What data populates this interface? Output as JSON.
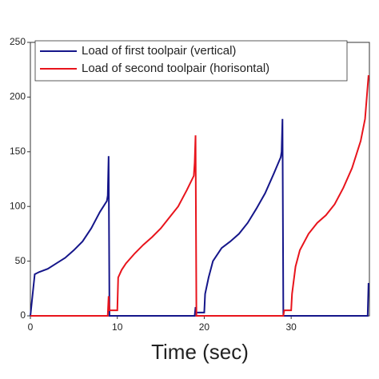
{
  "chart_data": {
    "type": "line",
    "x_label": "Time (sec)",
    "xlim": [
      0,
      39
    ],
    "xticks": [
      0,
      10,
      20,
      30
    ],
    "ylim": [
      0,
      250
    ],
    "yticks": [
      0,
      50,
      100,
      150,
      200,
      250
    ],
    "legend": "upper left",
    "series": [
      {
        "name": "Load of first toolpair (vertical)",
        "color": "#15168a",
        "x": [
          0,
          0.5,
          1,
          2,
          3,
          4,
          5,
          6,
          7,
          8,
          8.8,
          8.9,
          9.0,
          9.1,
          18.9,
          19.0,
          19.1,
          20.0,
          20.1,
          20.5,
          21,
          22,
          23,
          24,
          25,
          26,
          27,
          28,
          28.8,
          28.9,
          29.0,
          29.1,
          38.8,
          38.9
        ],
        "values": [
          0,
          38,
          40,
          43,
          48,
          53,
          60,
          68,
          80,
          95,
          105,
          110,
          146,
          0,
          0,
          8,
          3,
          3,
          20,
          35,
          50,
          62,
          68,
          75,
          85,
          98,
          112,
          130,
          145,
          150,
          180,
          0,
          0,
          30
        ]
      },
      {
        "name": "Load of second toolpair (horisontal)",
        "color": "#e8141c",
        "x": [
          0,
          8.9,
          9.0,
          9.1,
          10,
          10.1,
          10.5,
          11,
          12,
          13,
          14,
          15,
          16,
          17,
          18,
          18.8,
          18.9,
          19.0,
          19.1,
          29.1,
          29.2,
          30,
          30.1,
          30.5,
          31,
          32,
          33,
          34,
          35,
          36,
          37,
          38,
          38.5,
          38.7,
          38.9
        ],
        "values": [
          0,
          0,
          18,
          5,
          5,
          35,
          42,
          48,
          57,
          65,
          72,
          80,
          90,
          100,
          115,
          128,
          140,
          165,
          0,
          0,
          5,
          5,
          20,
          45,
          60,
          75,
          85,
          92,
          102,
          117,
          135,
          160,
          180,
          200,
          220
        ]
      }
    ]
  }
}
